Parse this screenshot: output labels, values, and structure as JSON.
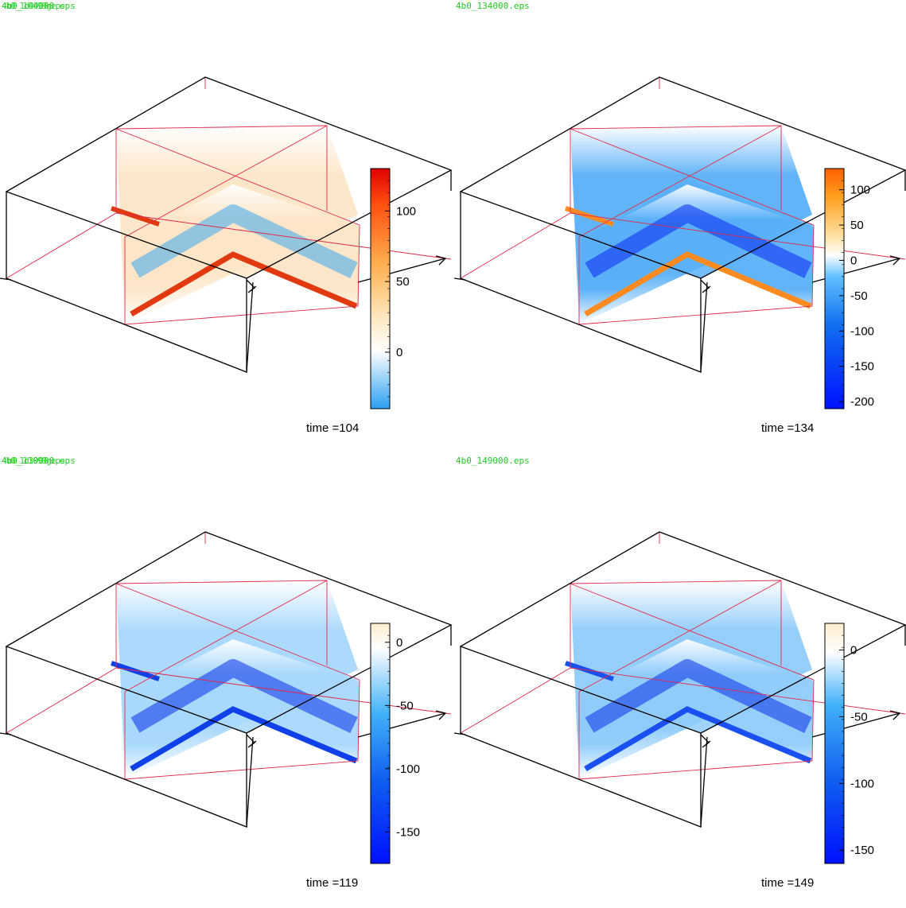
{
  "panels": [
    {
      "id": "p104",
      "filename": "4b0_104000.eps",
      "overlay": "4b0_1d4099geps",
      "time_label": "time =104",
      "colorbar": {
        "ticks": [
          "100",
          "50",
          "0"
        ],
        "tick_values": [
          100,
          50,
          0
        ],
        "vmin": -40,
        "vmax": 130,
        "stops": [
          [
            "#2aa0f0",
            0
          ],
          [
            "#ffffff",
            0.24
          ],
          [
            "#ffe8c0",
            0.38
          ],
          [
            "#ffb050",
            0.6
          ],
          [
            "#ff5010",
            0.85
          ],
          [
            "#e00000",
            1
          ]
        ]
      },
      "palette": {
        "panel": "#fde6c8",
        "band": "#3aa8f0",
        "edge": "#e23a10"
      }
    },
    {
      "id": "p134",
      "filename": "4b0_134000.eps",
      "overlay": "",
      "time_label": "time =134",
      "colorbar": {
        "ticks": [
          "100",
          "50",
          "0",
          "-50",
          "-100",
          "-150",
          "-200"
        ],
        "tick_values": [
          100,
          50,
          0,
          -50,
          -100,
          -150,
          -200
        ],
        "vmin": -210,
        "vmax": 130,
        "stops": [
          [
            "#0010ff",
            0
          ],
          [
            "#1070f0",
            0.35
          ],
          [
            "#60c0ff",
            0.55
          ],
          [
            "#ffffff",
            0.64
          ],
          [
            "#ffe0a0",
            0.72
          ],
          [
            "#ffa020",
            0.88
          ],
          [
            "#ff6000",
            1
          ]
        ]
      },
      "palette": {
        "panel": "#5ab0f8",
        "band": "#0a28f0",
        "edge": "#ff8a20"
      }
    },
    {
      "id": "p119",
      "filename": "4b0_119000.eps",
      "overlay": "4b0_1d3099geps",
      "time_label": "time =119",
      "colorbar": {
        "ticks": [
          "0",
          "-50",
          "-100",
          "-150"
        ],
        "tick_values": [
          0,
          -50,
          -100,
          -150
        ],
        "vmin": -175,
        "vmax": 15,
        "stops": [
          [
            "#0010ff",
            0
          ],
          [
            "#1060f0",
            0.35
          ],
          [
            "#40b0f8",
            0.62
          ],
          [
            "#ffffff",
            0.9
          ],
          [
            "#fdeccc",
            1
          ]
        ]
      },
      "palette": {
        "panel": "#a8d8fc",
        "band": "#0a30e8",
        "edge": "#1040e8"
      }
    },
    {
      "id": "p149",
      "filename": "4b0_149000.eps",
      "overlay": "",
      "time_label": "time =149",
      "colorbar": {
        "ticks": [
          "0",
          "-50",
          "-100",
          "-150"
        ],
        "tick_values": [
          0,
          -50,
          -100,
          -150
        ],
        "vmin": -160,
        "vmax": 20,
        "stops": [
          [
            "#0010ff",
            0
          ],
          [
            "#1060f0",
            0.35
          ],
          [
            "#40b0f8",
            0.66
          ],
          [
            "#ffffff",
            0.88
          ],
          [
            "#fdeccc",
            1
          ]
        ]
      },
      "palette": {
        "panel": "#90ccfa",
        "band": "#0a30e8",
        "edge": "#1a50f0"
      }
    }
  ]
}
